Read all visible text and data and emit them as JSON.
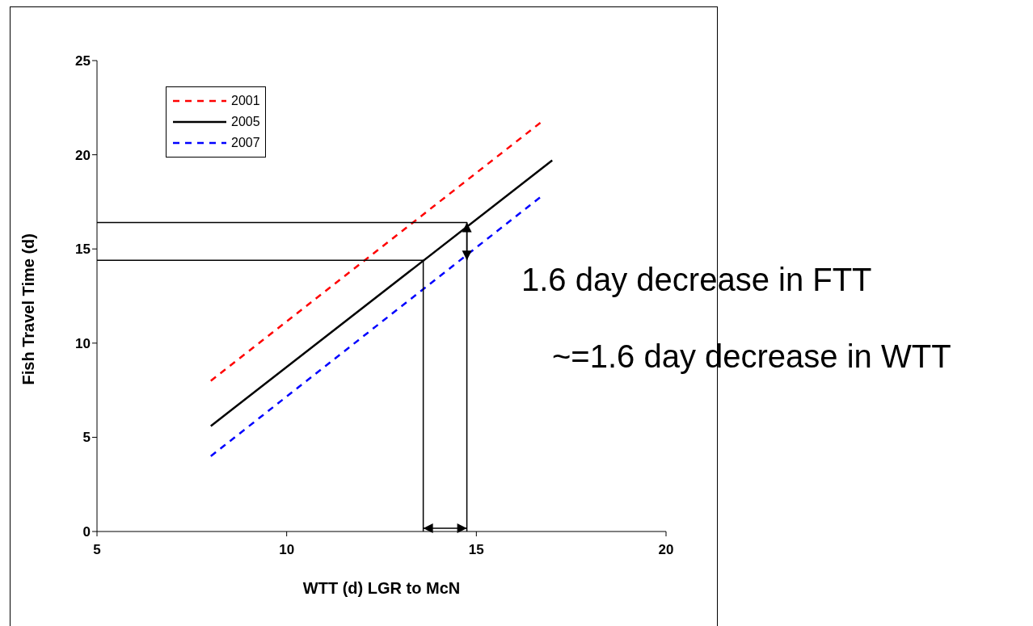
{
  "chart_data": {
    "type": "line",
    "xlabel": "WTT (d) LGR to McN",
    "ylabel": "Fish Travel Time (d)",
    "xlim": [
      5,
      20
    ],
    "xticks": [
      5,
      10,
      15,
      20
    ],
    "ylim": [
      0,
      25
    ],
    "yticks": [
      0,
      5,
      10,
      15,
      20,
      25
    ],
    "grid": false,
    "legend": "top left",
    "marker": "none",
    "series": [
      {
        "name": "2001",
        "color": "#ff0000",
        "line_style": "dashed",
        "x": [
          8,
          16.75
        ],
        "values": [
          8,
          21.8
        ]
      },
      {
        "name": "2005",
        "color": "#000000",
        "line_style": "solid",
        "x": [
          8,
          17
        ],
        "values": [
          5.6,
          19.7
        ]
      },
      {
        "name": "2007",
        "color": "#0000ff",
        "line_style": "dashed",
        "x": [
          8,
          16.75
        ],
        "values": [
          4,
          17.85
        ]
      },
      {
        "color": "#000000",
        "line_style": "solid",
        "x": [
          5,
          14.75,
          14.75
        ],
        "values": [
          16.4,
          16.4,
          0
        ]
      },
      {
        "color": "#000000",
        "line_style": "solid",
        "x": [
          5,
          13.6,
          13.6
        ],
        "values": [
          14.4,
          14.4,
          0
        ]
      }
    ],
    "annotations": [
      "1.6 day decrease in FTT",
      "~=1.6 day decrease in WTT"
    ]
  }
}
